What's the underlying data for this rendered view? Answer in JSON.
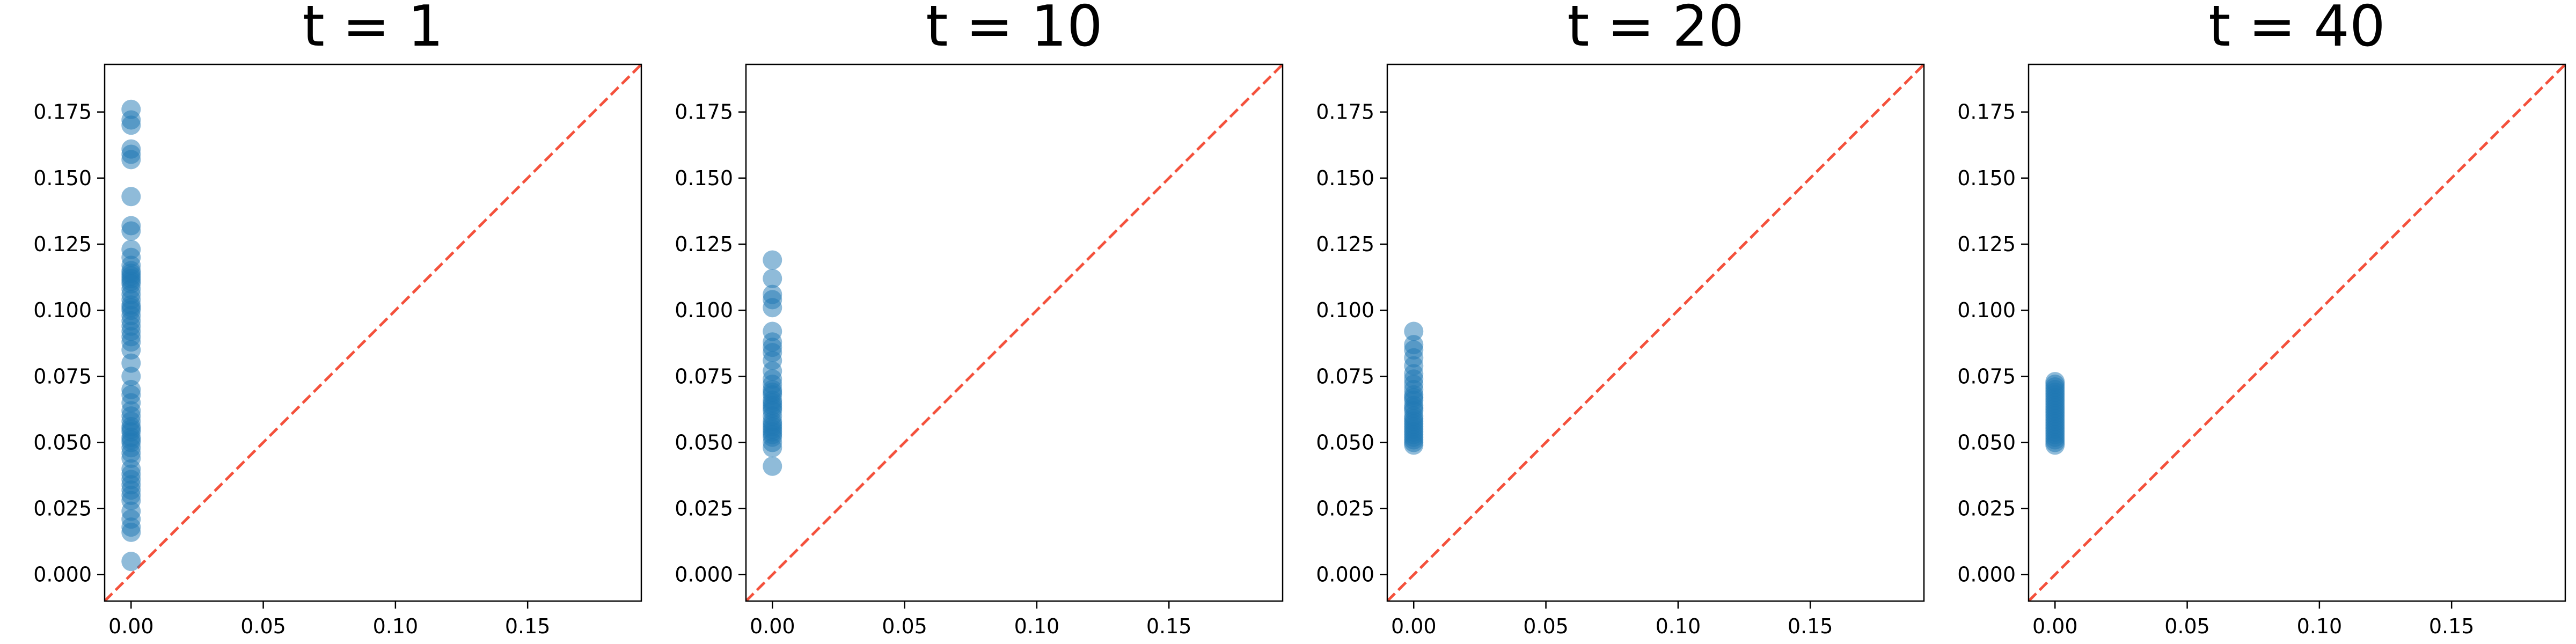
{
  "figure": {
    "colors": {
      "point": "#1f77b4",
      "diagonal": "#f4513c",
      "axes": "#000000",
      "background": "#ffffff"
    }
  },
  "chart_data": [
    {
      "type": "scatter",
      "title": "t = 1",
      "xlabel": "",
      "ylabel": "",
      "xlim": [
        -0.01,
        0.193
      ],
      "ylim": [
        -0.01,
        0.193
      ],
      "xticks": [
        0.0,
        0.05,
        0.1,
        0.15
      ],
      "xtick_labels": [
        "0.00",
        "0.05",
        "0.10",
        "0.15"
      ],
      "yticks": [
        0.0,
        0.025,
        0.05,
        0.075,
        0.1,
        0.125,
        0.15,
        0.175
      ],
      "ytick_labels": [
        "0.000",
        "0.025",
        "0.050",
        "0.075",
        "0.100",
        "0.125",
        "0.150",
        "0.175"
      ],
      "reference_line": "y = x (dashed)",
      "grid": false,
      "points": {
        "x": [
          0,
          0,
          0,
          0,
          0,
          0,
          0,
          0,
          0,
          0,
          0,
          0,
          0,
          0,
          0,
          0,
          0,
          0,
          0,
          0,
          0,
          0,
          0,
          0,
          0,
          0,
          0,
          0,
          0,
          0,
          0,
          0,
          0,
          0,
          0,
          0,
          0,
          0,
          0,
          0,
          0,
          0,
          0,
          0,
          0,
          0,
          0,
          0,
          0,
          0,
          0,
          0,
          0,
          0,
          0,
          0,
          0,
          0,
          0,
          0
        ],
        "y": [
          0.005,
          0.016,
          0.018,
          0.021,
          0.024,
          0.028,
          0.03,
          0.032,
          0.034,
          0.036,
          0.038,
          0.04,
          0.044,
          0.046,
          0.048,
          0.05,
          0.051,
          0.052,
          0.054,
          0.055,
          0.056,
          0.058,
          0.06,
          0.062,
          0.065,
          0.068,
          0.07,
          0.075,
          0.08,
          0.085,
          0.088,
          0.09,
          0.092,
          0.094,
          0.096,
          0.098,
          0.1,
          0.102,
          0.104,
          0.106,
          0.108,
          0.11,
          0.111,
          0.112,
          0.113,
          0.114,
          0.115,
          0.117,
          0.12,
          0.123,
          0.13,
          0.132,
          0.143,
          0.157,
          0.159,
          0.161,
          0.17,
          0.172,
          0.176,
          0.101
        ]
      }
    },
    {
      "type": "scatter",
      "title": "t = 10",
      "xlabel": "",
      "ylabel": "",
      "xlim": [
        -0.01,
        0.193
      ],
      "ylim": [
        -0.01,
        0.193
      ],
      "xticks": [
        0.0,
        0.05,
        0.1,
        0.15
      ],
      "xtick_labels": [
        "0.00",
        "0.05",
        "0.10",
        "0.15"
      ],
      "yticks": [
        0.0,
        0.025,
        0.05,
        0.075,
        0.1,
        0.125,
        0.15,
        0.175
      ],
      "ytick_labels": [
        "0.000",
        "0.025",
        "0.050",
        "0.075",
        "0.100",
        "0.125",
        "0.150",
        "0.175"
      ],
      "reference_line": "y = x (dashed)",
      "grid": false,
      "points": {
        "x": [
          0,
          0,
          0,
          0,
          0,
          0,
          0,
          0,
          0,
          0,
          0,
          0,
          0,
          0,
          0,
          0,
          0,
          0,
          0,
          0,
          0,
          0,
          0,
          0,
          0,
          0,
          0,
          0,
          0,
          0,
          0,
          0
        ],
        "y": [
          0.041,
          0.048,
          0.05,
          0.052,
          0.053,
          0.054,
          0.055,
          0.056,
          0.057,
          0.058,
          0.06,
          0.062,
          0.063,
          0.064,
          0.065,
          0.066,
          0.068,
          0.069,
          0.07,
          0.072,
          0.074,
          0.077,
          0.081,
          0.084,
          0.086,
          0.088,
          0.092,
          0.101,
          0.104,
          0.106,
          0.112,
          0.119
        ]
      }
    },
    {
      "type": "scatter",
      "title": "t = 20",
      "xlabel": "",
      "ylabel": "",
      "xlim": [
        -0.01,
        0.193
      ],
      "ylim": [
        -0.01,
        0.193
      ],
      "xticks": [
        0.0,
        0.05,
        0.1,
        0.15
      ],
      "xtick_labels": [
        "0.00",
        "0.05",
        "0.10",
        "0.15"
      ],
      "yticks": [
        0.0,
        0.025,
        0.05,
        0.075,
        0.1,
        0.125,
        0.15,
        0.175
      ],
      "ytick_labels": [
        "0.000",
        "0.025",
        "0.050",
        "0.075",
        "0.100",
        "0.125",
        "0.150",
        "0.175"
      ],
      "reference_line": "y = x (dashed)",
      "grid": false,
      "points": {
        "x": [
          0,
          0,
          0,
          0,
          0,
          0,
          0,
          0,
          0,
          0,
          0,
          0,
          0,
          0,
          0,
          0,
          0,
          0,
          0,
          0,
          0,
          0,
          0,
          0,
          0,
          0,
          0
        ],
        "y": [
          0.049,
          0.05,
          0.051,
          0.052,
          0.053,
          0.054,
          0.055,
          0.056,
          0.057,
          0.058,
          0.059,
          0.06,
          0.062,
          0.063,
          0.064,
          0.066,
          0.067,
          0.068,
          0.07,
          0.072,
          0.074,
          0.076,
          0.079,
          0.082,
          0.085,
          0.087,
          0.092
        ]
      }
    },
    {
      "type": "scatter",
      "title": "t = 40",
      "xlabel": "",
      "ylabel": "",
      "xlim": [
        -0.01,
        0.193
      ],
      "ylim": [
        -0.01,
        0.193
      ],
      "xticks": [
        0.0,
        0.05,
        0.1,
        0.15
      ],
      "xtick_labels": [
        "0.00",
        "0.05",
        "0.10",
        "0.15"
      ],
      "yticks": [
        0.0,
        0.025,
        0.05,
        0.075,
        0.1,
        0.125,
        0.15,
        0.175
      ],
      "ytick_labels": [
        "0.000",
        "0.025",
        "0.050",
        "0.075",
        "0.100",
        "0.125",
        "0.150",
        "0.175"
      ],
      "reference_line": "y = x (dashed)",
      "grid": false,
      "points": {
        "x": [
          0,
          0,
          0,
          0,
          0,
          0,
          0,
          0,
          0,
          0,
          0,
          0,
          0,
          0,
          0,
          0,
          0,
          0,
          0,
          0,
          0,
          0,
          0,
          0,
          0
        ],
        "y": [
          0.049,
          0.05,
          0.051,
          0.052,
          0.053,
          0.054,
          0.055,
          0.056,
          0.057,
          0.058,
          0.059,
          0.06,
          0.061,
          0.062,
          0.063,
          0.064,
          0.065,
          0.066,
          0.067,
          0.068,
          0.069,
          0.07,
          0.071,
          0.072,
          0.073
        ]
      }
    }
  ]
}
